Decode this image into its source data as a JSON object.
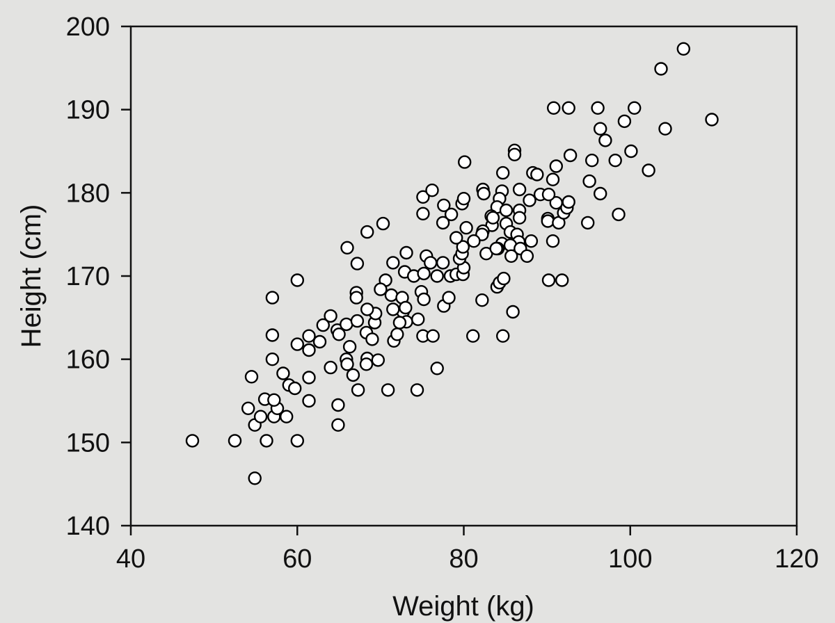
{
  "chart_data": {
    "type": "scatter",
    "title": "",
    "xlabel": "Weight (kg)",
    "ylabel": "Height (cm)",
    "xlim": [
      40,
      120
    ],
    "ylim": [
      140,
      200
    ],
    "xticks": [
      40,
      60,
      80,
      100,
      120
    ],
    "yticks": [
      140,
      150,
      160,
      170,
      180,
      190,
      200
    ],
    "grid": false,
    "legend": null,
    "marker": {
      "shape": "open-circle",
      "edge_color": "#000000",
      "face_color": "#ffffff"
    },
    "points": [
      [
        47.4,
        150.2
      ],
      [
        52.5,
        150.2
      ],
      [
        56.3,
        150.2
      ],
      [
        60.0,
        150.2
      ],
      [
        54.9,
        145.7
      ],
      [
        54.9,
        152.1
      ],
      [
        55.6,
        153.1
      ],
      [
        57.2,
        153.1
      ],
      [
        58.7,
        153.1
      ],
      [
        54.1,
        154.1
      ],
      [
        57.6,
        154.1
      ],
      [
        56.1,
        155.2
      ],
      [
        57.2,
        155.1
      ],
      [
        54.5,
        157.9
      ],
      [
        58.3,
        158.3
      ],
      [
        59.0,
        156.9
      ],
      [
        59.7,
        156.5
      ],
      [
        61.4,
        157.8
      ],
      [
        61.4,
        155.0
      ],
      [
        57.0,
        160.0
      ],
      [
        57.0,
        162.9
      ],
      [
        57.0,
        167.4
      ],
      [
        60.0,
        169.5
      ],
      [
        60.0,
        161.8
      ],
      [
        61.4,
        162.8
      ],
      [
        61.4,
        161.1
      ],
      [
        62.7,
        162.1
      ],
      [
        63.1,
        164.1
      ],
      [
        64.0,
        165.2
      ],
      [
        64.8,
        163.5
      ],
      [
        65.0,
        163.0
      ],
      [
        65.9,
        164.2
      ],
      [
        67.2,
        164.6
      ],
      [
        66.3,
        161.5
      ],
      [
        65.9,
        160.0
      ],
      [
        64.0,
        159.0
      ],
      [
        66.0,
        159.4
      ],
      [
        66.7,
        158.1
      ],
      [
        67.3,
        156.3
      ],
      [
        64.9,
        154.5
      ],
      [
        64.9,
        152.1
      ],
      [
        68.3,
        163.2
      ],
      [
        69.3,
        164.4
      ],
      [
        69.4,
        165.5
      ],
      [
        68.4,
        166.0
      ],
      [
        68.4,
        160.1
      ],
      [
        69.7,
        159.9
      ],
      [
        68.3,
        159.4
      ],
      [
        70.9,
        156.3
      ],
      [
        74.4,
        156.3
      ],
      [
        76.8,
        158.9
      ],
      [
        67.1,
        168.0
      ],
      [
        67.1,
        167.4
      ],
      [
        67.2,
        171.5
      ],
      [
        66.0,
        173.4
      ],
      [
        68.4,
        175.3
      ],
      [
        70.3,
        176.3
      ],
      [
        70.6,
        169.5
      ],
      [
        70.0,
        168.4
      ],
      [
        71.3,
        167.7
      ],
      [
        72.6,
        167.4
      ],
      [
        71.5,
        171.6
      ],
      [
        72.9,
        170.5
      ],
      [
        73.1,
        172.8
      ],
      [
        74.0,
        170.0
      ],
      [
        75.5,
        172.4
      ],
      [
        76.0,
        171.6
      ],
      [
        77.5,
        171.6
      ],
      [
        75.2,
        170.3
      ],
      [
        76.8,
        170.0
      ],
      [
        78.4,
        170.0
      ],
      [
        79.1,
        170.2
      ],
      [
        79.9,
        170.2
      ],
      [
        80.0,
        171.0
      ],
      [
        79.5,
        172.1
      ],
      [
        79.8,
        172.7
      ],
      [
        79.9,
        173.5
      ],
      [
        79.1,
        174.6
      ],
      [
        72.7,
        165.7
      ],
      [
        73.1,
        164.5
      ],
      [
        72.3,
        164.4
      ],
      [
        71.6,
        162.2
      ],
      [
        72.0,
        163.0
      ],
      [
        69.0,
        162.4
      ],
      [
        71.5,
        166.0
      ],
      [
        73.0,
        166.2
      ],
      [
        74.5,
        164.8
      ],
      [
        75.1,
        162.8
      ],
      [
        76.3,
        162.8
      ],
      [
        74.9,
        168.1
      ],
      [
        75.2,
        167.2
      ],
      [
        77.6,
        166.4
      ],
      [
        78.2,
        167.4
      ],
      [
        82.2,
        167.1
      ],
      [
        81.1,
        162.8
      ],
      [
        84.7,
        162.8
      ],
      [
        85.9,
        165.7
      ],
      [
        84.0,
        168.7
      ],
      [
        84.3,
        169.2
      ],
      [
        84.8,
        169.7
      ],
      [
        90.2,
        169.5
      ],
      [
        91.8,
        169.5
      ],
      [
        75.1,
        179.5
      ],
      [
        75.1,
        177.5
      ],
      [
        76.2,
        180.3
      ],
      [
        77.6,
        178.5
      ],
      [
        78.5,
        177.4
      ],
      [
        77.5,
        176.4
      ],
      [
        79.8,
        178.7
      ],
      [
        80.0,
        179.3
      ],
      [
        80.1,
        183.7
      ],
      [
        82.3,
        180.4
      ],
      [
        82.4,
        179.9
      ],
      [
        84.6,
        180.2
      ],
      [
        86.7,
        180.4
      ],
      [
        84.3,
        179.3
      ],
      [
        84.0,
        178.3
      ],
      [
        85.1,
        177.9
      ],
      [
        86.7,
        177.9
      ],
      [
        86.7,
        177.0
      ],
      [
        83.3,
        177.2
      ],
      [
        83.4,
        176.1
      ],
      [
        83.5,
        177.0
      ],
      [
        85.1,
        176.3
      ],
      [
        80.3,
        175.8
      ],
      [
        82.3,
        175.4
      ],
      [
        82.2,
        175.0
      ],
      [
        85.6,
        175.3
      ],
      [
        86.4,
        175.0
      ],
      [
        86.6,
        174.1
      ],
      [
        88.1,
        174.2
      ],
      [
        81.2,
        174.2
      ],
      [
        84.6,
        173.9
      ],
      [
        85.6,
        173.7
      ],
      [
        84.1,
        173.3
      ],
      [
        86.8,
        173.3
      ],
      [
        82.7,
        172.7
      ],
      [
        85.7,
        172.4
      ],
      [
        87.6,
        172.4
      ],
      [
        83.9,
        173.3
      ],
      [
        84.7,
        182.4
      ],
      [
        86.1,
        185.1
      ],
      [
        86.1,
        184.6
      ],
      [
        88.3,
        182.4
      ],
      [
        88.8,
        182.2
      ],
      [
        89.2,
        179.8
      ],
      [
        87.9,
        179.1
      ],
      [
        90.1,
        176.9
      ],
      [
        90.1,
        176.6
      ],
      [
        91.4,
        176.4
      ],
      [
        90.7,
        174.2
      ],
      [
        92.0,
        177.6
      ],
      [
        92.4,
        178.2
      ],
      [
        92.6,
        178.9
      ],
      [
        91.1,
        178.8
      ],
      [
        90.2,
        179.8
      ],
      [
        90.7,
        181.6
      ],
      [
        91.1,
        183.2
      ],
      [
        92.8,
        184.5
      ],
      [
        95.1,
        181.4
      ],
      [
        95.4,
        183.9
      ],
      [
        96.4,
        179.9
      ],
      [
        94.9,
        176.4
      ],
      [
        98.6,
        177.4
      ],
      [
        98.2,
        183.9
      ],
      [
        100.1,
        185.0
      ],
      [
        102.2,
        182.7
      ],
      [
        90.8,
        190.2
      ],
      [
        92.6,
        190.2
      ],
      [
        96.1,
        190.2
      ],
      [
        100.5,
        190.2
      ],
      [
        99.3,
        188.6
      ],
      [
        96.4,
        187.7
      ],
      [
        97.0,
        186.3
      ],
      [
        104.2,
        187.7
      ],
      [
        103.7,
        194.9
      ],
      [
        106.4,
        197.3
      ],
      [
        109.8,
        188.8
      ]
    ]
  }
}
